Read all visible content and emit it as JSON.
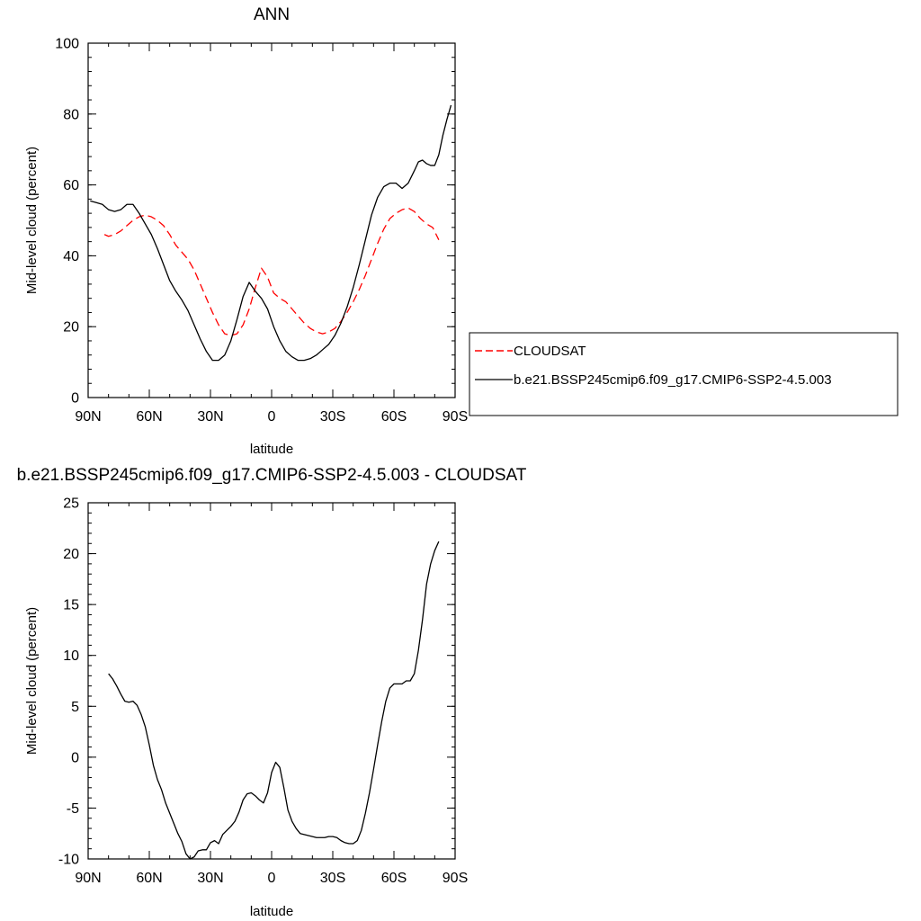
{
  "chart_data": [
    {
      "type": "line",
      "title": "ANN",
      "xlabel": "latitude",
      "ylabel": "Mid-level cloud (percent)",
      "xlim": [
        90,
        -90
      ],
      "ylim": [
        0,
        100
      ],
      "x_ticks": [
        90,
        60,
        30,
        0,
        -30,
        -60,
        -90
      ],
      "x_tick_labels": [
        "90N",
        "60N",
        "30N",
        "0",
        "30S",
        "60S",
        "90S"
      ],
      "y_ticks": [
        0,
        20,
        40,
        60,
        80,
        100
      ],
      "y_tick_labels": [
        "0",
        "20",
        "40",
        "60",
        "80",
        "100"
      ],
      "legend": {
        "placement": "right",
        "entries": [
          "CLOUDSAT",
          "b.e21.BSSP245cmip6.f09_g17.CMIP6-SSP2-4.5.003"
        ]
      },
      "series": [
        {
          "name": "CLOUDSAT",
          "color": "#ff0000",
          "style": "dashed",
          "x": [
            82,
            80,
            77,
            74,
            71,
            68,
            65,
            62,
            59,
            56,
            53,
            50,
            47,
            44,
            41,
            38,
            35,
            32,
            29,
            26,
            23,
            20,
            17,
            14,
            11,
            8,
            5,
            2,
            -1,
            -4,
            -7,
            -10,
            -13,
            -16,
            -19,
            -22,
            -25,
            -28,
            -31,
            -34,
            -37,
            -40,
            -43,
            -46,
            -49,
            -52,
            -55,
            -58,
            -61,
            -64,
            -67,
            -70,
            -73,
            -76,
            -79,
            -82
          ],
          "values": [
            46,
            45.5,
            46,
            47,
            48.5,
            50,
            51,
            51.5,
            51,
            50,
            48.5,
            46,
            43,
            41,
            39,
            36,
            32,
            28,
            24,
            20.5,
            18,
            17.5,
            18,
            20.5,
            25,
            31,
            36.5,
            34,
            29.5,
            28,
            27,
            25,
            23,
            21,
            19.5,
            18.5,
            18,
            18.5,
            19.5,
            21.5,
            24,
            27,
            30.5,
            34.5,
            39,
            43.5,
            47.5,
            50.5,
            52,
            53,
            53.5,
            52.5,
            50.5,
            49,
            48,
            44.5
          ]
        },
        {
          "name": "b.e21.BSSP245cmip6.f09_g17.CMIP6-SSP2-4.5.003",
          "color": "#000000",
          "style": "solid",
          "x": [
            89,
            86,
            83,
            80,
            77,
            74,
            71,
            68,
            65,
            62,
            59,
            56,
            53,
            50,
            47,
            44,
            41,
            38,
            35,
            32,
            29,
            26,
            23,
            20,
            17,
            14,
            11,
            8,
            5,
            2,
            -1,
            -4,
            -7,
            -10,
            -13,
            -16,
            -19,
            -22,
            -25,
            -28,
            -31,
            -34,
            -37,
            -40,
            -43,
            -46,
            -49,
            -52,
            -55,
            -58,
            -61,
            -64,
            -67,
            -70,
            -72,
            -74,
            -76,
            -78,
            -80,
            -82,
            -84,
            -86,
            -88
          ],
          "values": [
            55.5,
            55,
            54.5,
            53,
            52.5,
            53,
            54.5,
            54.5,
            52,
            49,
            46,
            42,
            37.5,
            33,
            30,
            27.5,
            24.5,
            20.5,
            16.5,
            13,
            10.5,
            10.5,
            12,
            16,
            22,
            28.5,
            32.5,
            30,
            28,
            25,
            20,
            16,
            13,
            11.5,
            10.5,
            10.5,
            11,
            12,
            13.5,
            15,
            17.5,
            21,
            25.5,
            31,
            37.5,
            44.5,
            51.5,
            56.5,
            59.5,
            60.5,
            60.5,
            59,
            60.5,
            64,
            66.5,
            67,
            66,
            65.5,
            65.5,
            68.5,
            74,
            78.5,
            82.5
          ]
        }
      ]
    },
    {
      "type": "line",
      "title": "b.e21.BSSP245cmip6.f09_g17.CMIP6-SSP2-4.5.003 - CLOUDSAT",
      "xlabel": "latitude",
      "ylabel": "Mid-level cloud (percent)",
      "xlim": [
        90,
        -90
      ],
      "ylim": [
        -10,
        25
      ],
      "x_ticks": [
        90,
        60,
        30,
        0,
        -30,
        -60,
        -90
      ],
      "x_tick_labels": [
        "90N",
        "60N",
        "30N",
        "0",
        "30S",
        "60S",
        "90S"
      ],
      "y_ticks": [
        -10,
        -5,
        0,
        5,
        10,
        15,
        20,
        25
      ],
      "y_tick_labels": [
        "-10",
        "-5",
        "0",
        "5",
        "10",
        "15",
        "20",
        "25"
      ],
      "series": [
        {
          "color": "#000000",
          "style": "solid",
          "x": [
            80,
            78,
            76,
            74,
            72,
            70,
            68,
            66,
            64,
            62,
            60,
            58,
            56,
            54,
            52,
            50,
            48,
            46,
            44,
            42,
            40,
            38,
            36,
            34,
            32,
            30,
            28,
            26,
            24,
            22,
            20,
            18,
            16,
            14,
            12,
            10,
            8,
            6,
            4,
            2,
            0,
            -2,
            -4,
            -6,
            -8,
            -10,
            -12,
            -14,
            -16,
            -18,
            -20,
            -22,
            -24,
            -26,
            -28,
            -30,
            -32,
            -34,
            -36,
            -38,
            -40,
            -42,
            -44,
            -46,
            -48,
            -50,
            -52,
            -54,
            -56,
            -58,
            -60,
            -62,
            -64,
            -66,
            -68,
            -70,
            -72,
            -74,
            -76,
            -78,
            -80,
            -82
          ],
          "values": [
            8.2,
            7.7,
            7,
            6.2,
            5.5,
            5.4,
            5.5,
            5.1,
            4.2,
            3,
            1.2,
            -0.8,
            -2.2,
            -3.2,
            -4.5,
            -5.5,
            -6.5,
            -7.5,
            -8.3,
            -9.5,
            -10,
            -9.8,
            -9.2,
            -9.1,
            -9.1,
            -8.4,
            -8.2,
            -8.5,
            -7.6,
            -7.2,
            -6.8,
            -6.3,
            -5.4,
            -4.2,
            -3.6,
            -3.5,
            -3.8,
            -4.2,
            -4.5,
            -3.5,
            -1.5,
            -0.5,
            -1,
            -3,
            -5.2,
            -6.3,
            -7,
            -7.5,
            -7.6,
            -7.7,
            -7.8,
            -7.9,
            -7.9,
            -7.9,
            -7.8,
            -7.8,
            -7.9,
            -8.2,
            -8.4,
            -8.5,
            -8.5,
            -8.2,
            -7.2,
            -5.5,
            -3.5,
            -1.2,
            1.2,
            3.5,
            5.5,
            6.8,
            7.2,
            7.2,
            7.2,
            7.5,
            7.5,
            8.2,
            10.5,
            13.5,
            17,
            19,
            20.3,
            21.2
          ]
        }
      ]
    }
  ]
}
